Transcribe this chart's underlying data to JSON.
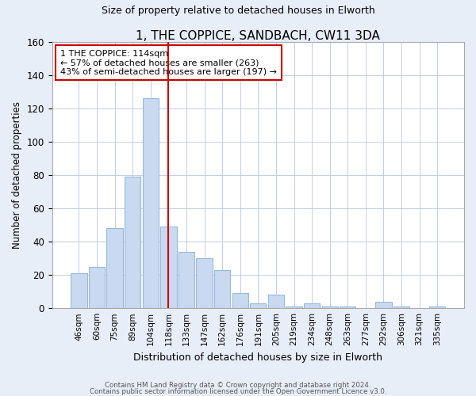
{
  "title": "1, THE COPPICE, SANDBACH, CW11 3DA",
  "subtitle": "Size of property relative to detached houses in Elworth",
  "xlabel": "Distribution of detached houses by size in Elworth",
  "ylabel": "Number of detached properties",
  "categories": [
    "46sqm",
    "60sqm",
    "75sqm",
    "89sqm",
    "104sqm",
    "118sqm",
    "133sqm",
    "147sqm",
    "162sqm",
    "176sqm",
    "191sqm",
    "205sqm",
    "219sqm",
    "234sqm",
    "248sqm",
    "263sqm",
    "277sqm",
    "292sqm",
    "306sqm",
    "321sqm",
    "335sqm"
  ],
  "values": [
    21,
    25,
    48,
    79,
    126,
    49,
    34,
    30,
    23,
    9,
    3,
    8,
    1,
    3,
    1,
    1,
    0,
    4,
    1,
    0,
    1
  ],
  "bar_color": "#c8d9f0",
  "bar_edge_color": "#9ab8df",
  "vline_color": "#cc0000",
  "vline_x_index": 5,
  "annotation_text": "1 THE COPPICE: 114sqm\n← 57% of detached houses are smaller (263)\n43% of semi-detached houses are larger (197) →",
  "ylim": [
    0,
    160
  ],
  "yticks": [
    0,
    20,
    40,
    60,
    80,
    100,
    120,
    140,
    160
  ],
  "bg_color": "#e8eef8",
  "plot_bg_color": "#e8eef8",
  "inner_bg_color": "#ffffff",
  "footer1": "Contains HM Land Registry data © Crown copyright and database right 2024.",
  "footer2": "Contains public sector information licensed under the Open Government Licence v3.0."
}
